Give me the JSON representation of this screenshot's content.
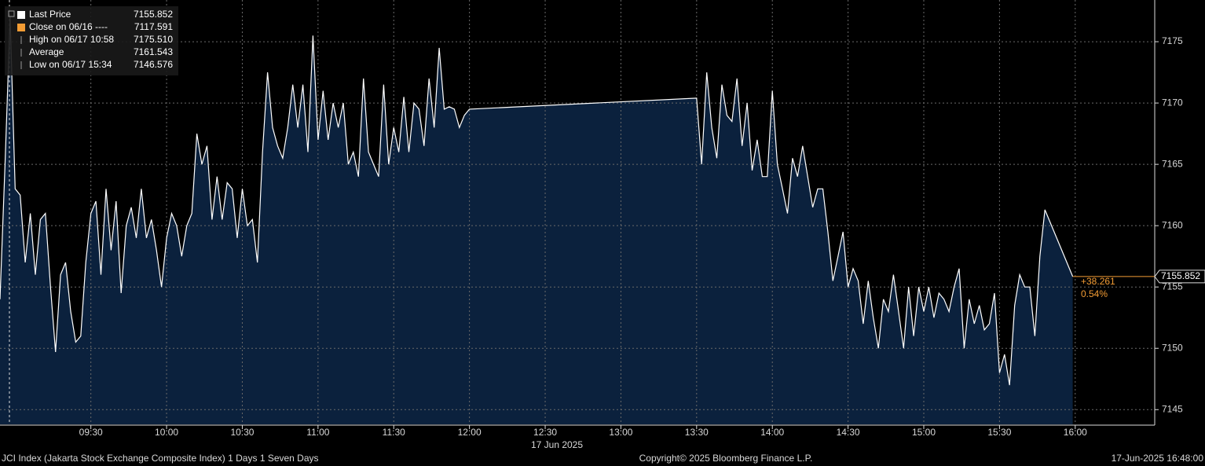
{
  "chart_data": {
    "type": "area",
    "x": [
      534,
      536,
      538,
      540,
      542,
      544,
      546,
      548,
      550,
      552,
      554,
      556,
      558,
      560,
      562,
      564,
      566,
      568,
      570,
      572,
      574,
      576,
      578,
      580,
      582,
      584,
      586,
      588,
      590,
      592,
      594,
      596,
      598,
      600,
      602,
      604,
      606,
      608,
      610,
      612,
      614,
      616,
      618,
      620,
      622,
      624,
      626,
      628,
      630,
      632,
      634,
      636,
      638,
      640,
      642,
      644,
      646,
      648,
      650,
      652,
      654,
      656,
      658,
      660,
      662,
      664,
      666,
      668,
      670,
      672,
      674,
      676,
      678,
      680,
      682,
      684,
      686,
      688,
      690,
      692,
      694,
      696,
      698,
      700,
      702,
      704,
      706,
      708,
      710,
      712,
      714,
      716,
      718,
      720,
      810,
      812,
      814,
      816,
      818,
      820,
      822,
      824,
      826,
      828,
      830,
      832,
      834,
      836,
      838,
      840,
      842,
      844,
      846,
      848,
      850,
      852,
      854,
      856,
      858,
      860,
      862,
      864,
      866,
      868,
      870,
      872,
      874,
      876,
      878,
      880,
      882,
      884,
      886,
      888,
      890,
      892,
      894,
      896,
      898,
      900,
      902,
      904,
      906,
      908,
      910,
      912,
      914,
      916,
      918,
      920,
      922,
      924,
      926,
      928,
      930,
      932,
      934,
      936,
      938,
      940,
      942,
      944,
      946,
      948,
      959
    ],
    "series": [
      {
        "name": "Last Price",
        "color": "#ffffff",
        "fill": "#0b213d",
        "last": 7155.852,
        "values": [
          7154,
          7165,
          7177,
          7163,
          7162.5,
          7157,
          7161,
          7156,
          7160.5,
          7161,
          7155,
          7149.7,
          7156,
          7157,
          7153,
          7150.5,
          7151,
          7157,
          7161,
          7162,
          7156,
          7163,
          7158,
          7162,
          7154.5,
          7160,
          7161.5,
          7159,
          7163,
          7159,
          7160.5,
          7158,
          7155,
          7159,
          7161,
          7160,
          7157.5,
          7160,
          7161,
          7167.5,
          7165,
          7166.5,
          7160.5,
          7164,
          7160.5,
          7163.5,
          7163,
          7159,
          7163,
          7160,
          7160.5,
          7157,
          7166,
          7172.5,
          7168,
          7166.5,
          7165.5,
          7168,
          7171.5,
          7168,
          7171.5,
          7166,
          7175.5,
          7167,
          7171,
          7167,
          7170,
          7168,
          7170,
          7165,
          7166,
          7164,
          7172,
          7166,
          7165,
          7164,
          7171.5,
          7165,
          7168,
          7166,
          7170.5,
          7166,
          7170,
          7169.5,
          7166.5,
          7172,
          7168,
          7174.5,
          7169.5,
          7169.7,
          7169.5,
          7168,
          7169,
          7169.5,
          7170.4,
          7165,
          7172.5,
          7168,
          7165.5,
          7171.5,
          7169,
          7168.5,
          7172,
          7166.5,
          7170,
          7164.5,
          7167,
          7164,
          7164,
          7171,
          7165,
          7163,
          7161,
          7165.5,
          7164,
          7166.5,
          7164,
          7161.5,
          7163,
          7163,
          7159.5,
          7155.5,
          7157.5,
          7159.5,
          7155,
          7156.5,
          7155.5,
          7152,
          7155.5,
          7152.5,
          7150,
          7154,
          7153,
          7156,
          7153,
          7150,
          7155,
          7151,
          7155,
          7153,
          7155,
          7152.5,
          7154.5,
          7154,
          7153,
          7155,
          7156.5,
          7150,
          7154,
          7152,
          7153.5,
          7151.5,
          7152,
          7154.5,
          7148,
          7149.5,
          7147,
          7153.5,
          7156,
          7155,
          7155,
          7151,
          7157.5,
          7161.3,
          7155.852
        ]
      }
    ],
    "last_color": "#f39c34",
    "change": {
      "value": 38.261,
      "label": "+38.261"
    },
    "change_pct": {
      "value": 0.54,
      "label": "0.54%"
    },
    "stats": [
      {
        "label": "Close on 06/16 ----",
        "value": 7117.591,
        "color": "#f39c34"
      },
      {
        "label": "High on 06/17 10:58",
        "value": 7175.51,
        "value_label": "7175.510"
      },
      {
        "label": "Average",
        "value": 7161.543
      },
      {
        "label": "Low on 06/17 15:34",
        "value": 7146.576
      }
    ],
    "xlim": [
      534,
      991.5
    ],
    "ylim": [
      7143.8,
      7178.4
    ],
    "yticks": [
      7145,
      7150,
      7155,
      7160,
      7165,
      7170,
      7175
    ],
    "xticks": [
      {
        "value": 570,
        "label": "09:30"
      },
      {
        "value": 600,
        "label": "10:00"
      },
      {
        "value": 630,
        "label": "10:30"
      },
      {
        "value": 660,
        "label": "11:00"
      },
      {
        "value": 690,
        "label": "11:30"
      },
      {
        "value": 720,
        "label": "12:00"
      },
      {
        "value": 750,
        "label": "12:30"
      },
      {
        "value": 780,
        "label": "13:00"
      },
      {
        "value": 810,
        "label": "13:30"
      },
      {
        "value": 840,
        "label": "14:00"
      },
      {
        "value": 870,
        "label": "14:30"
      },
      {
        "value": 900,
        "label": "15:00"
      },
      {
        "value": 930,
        "label": "15:30"
      },
      {
        "value": 960,
        "label": "16:00"
      }
    ],
    "x_label": "17 Jun 2025",
    "grid": true,
    "footer_left": "JCI Index (Jakarta Stock Exchange Composite Index) 1 Days 1 Seven Days",
    "copyright": "Copyright© 2025 Bloomberg Finance L.P.",
    "timestamp": "17-Jun-2025 16:48:00"
  }
}
